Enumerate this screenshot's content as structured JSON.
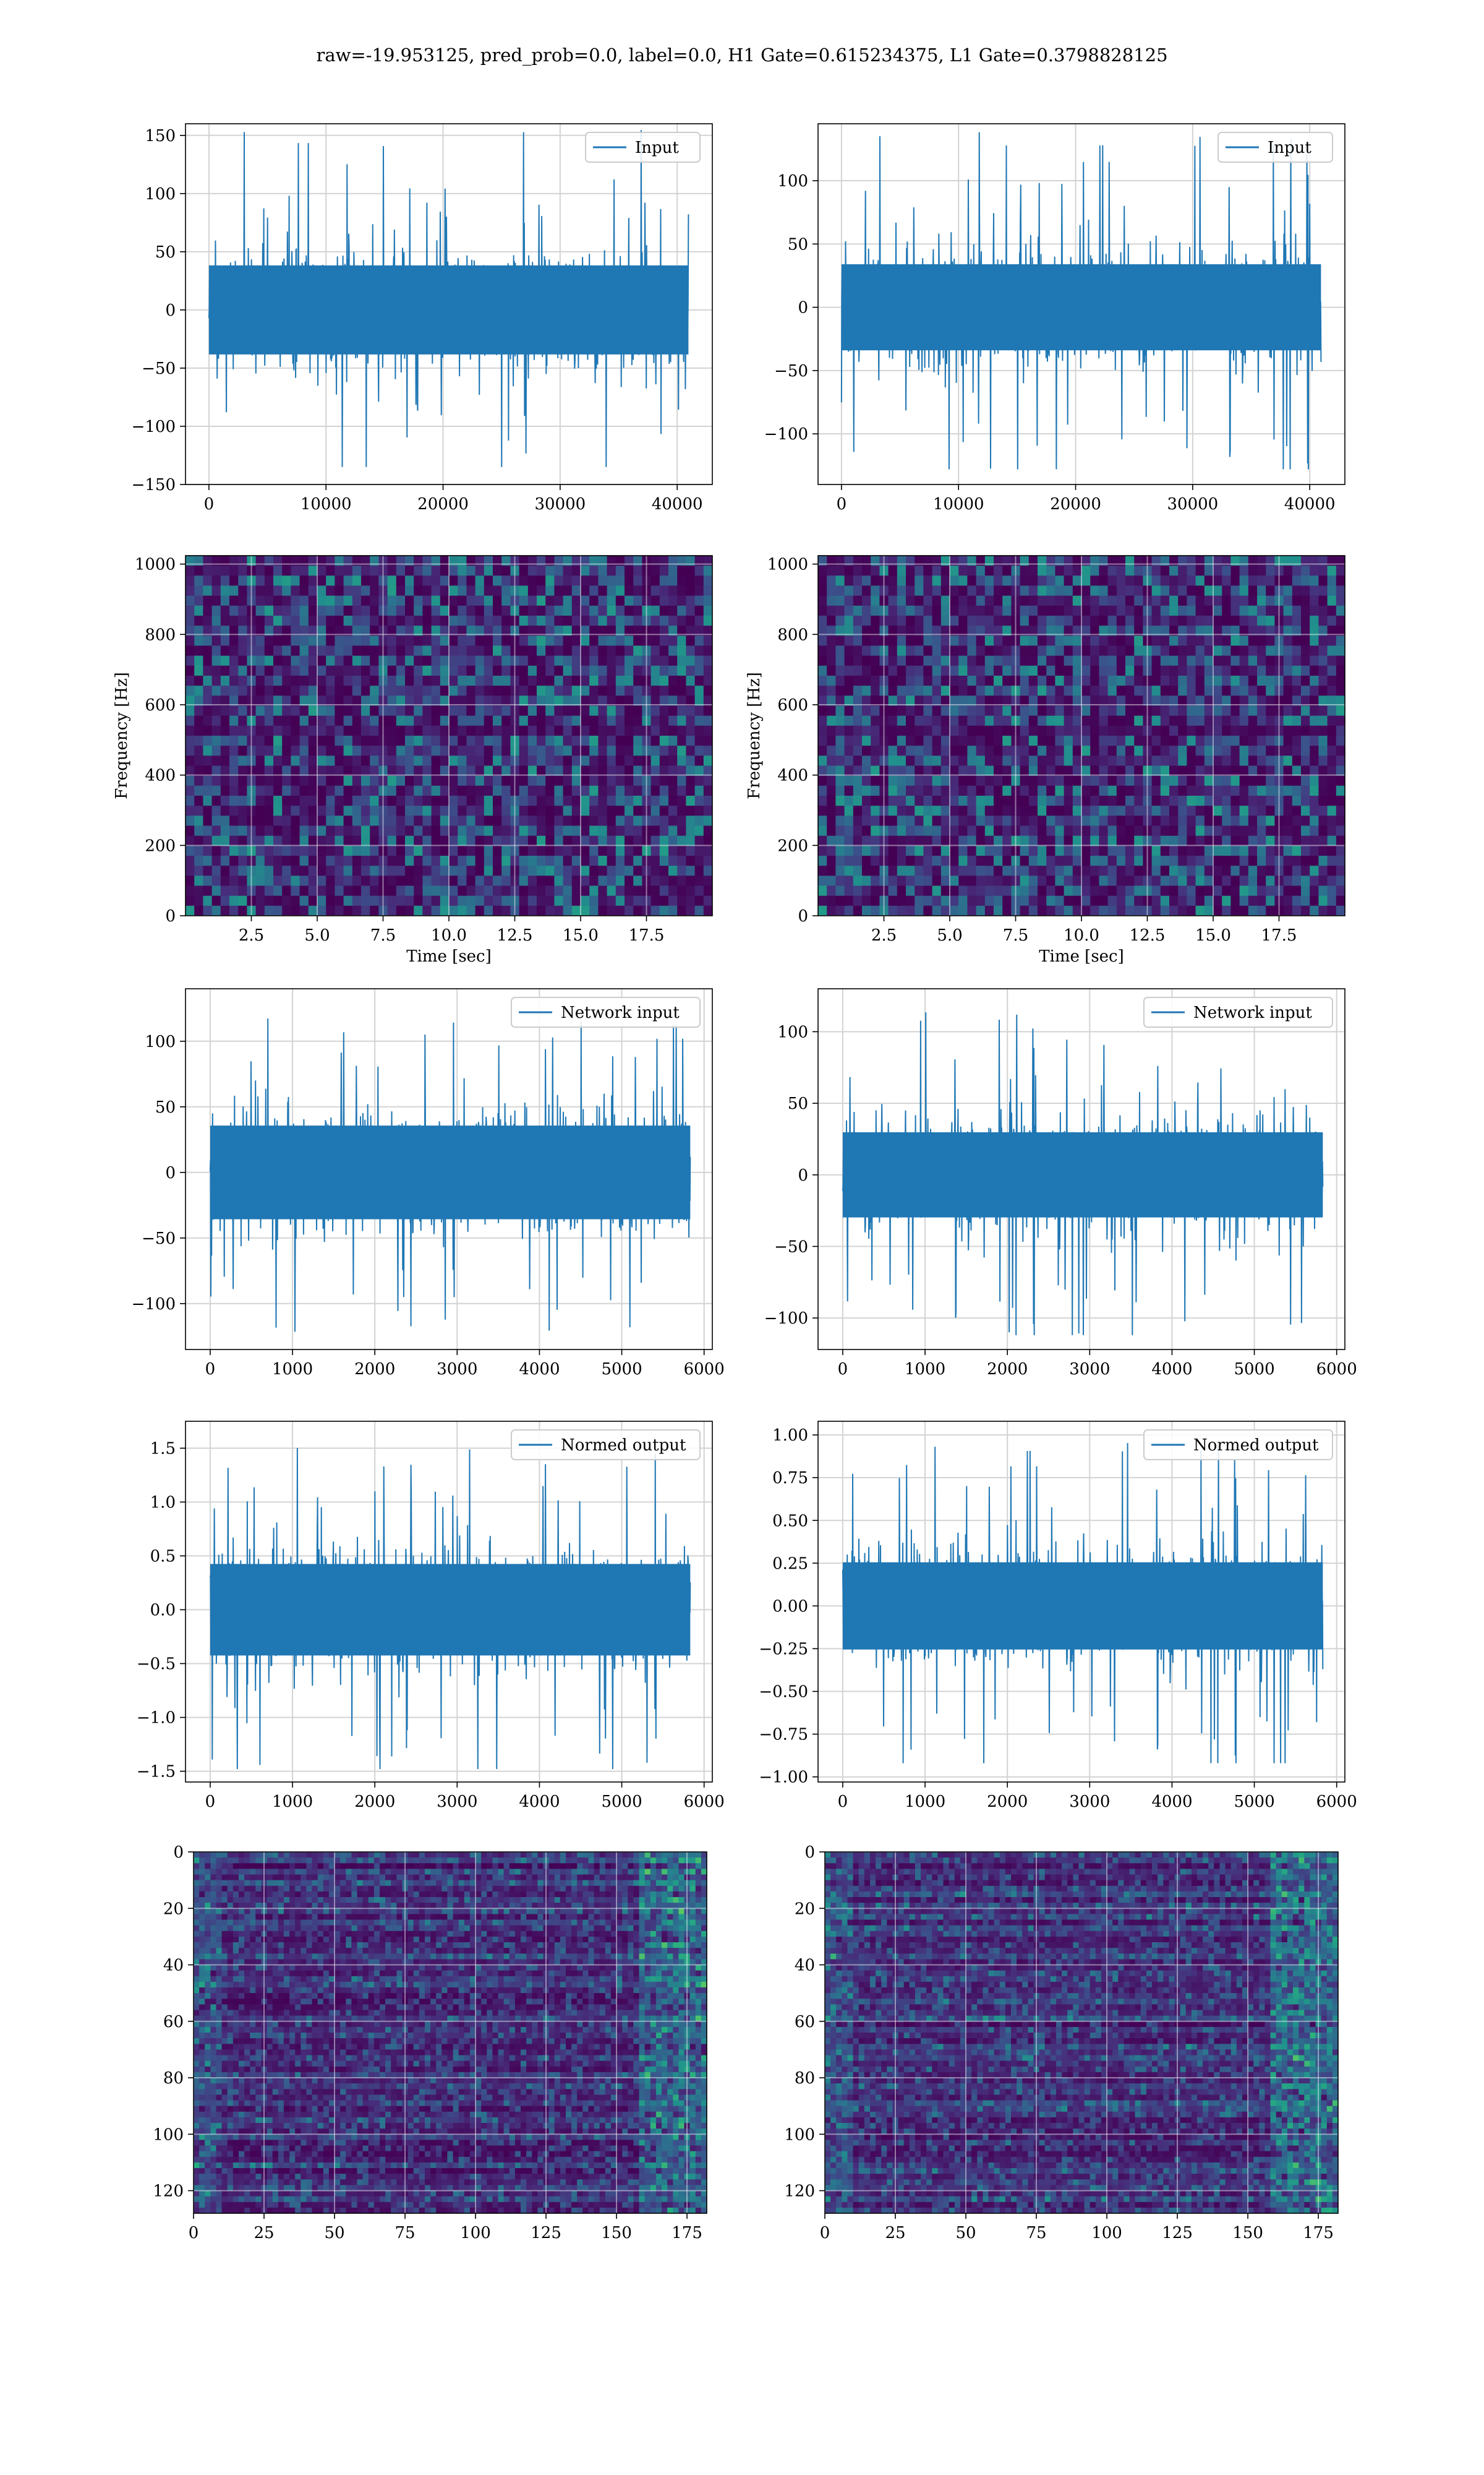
{
  "figure_title": "raw=-19.953125, pred_prob=0.0, label=0.0, H1 Gate=0.615234375, L1 Gate=0.3798828125",
  "colors": {
    "line": "#1f77b4",
    "grid": "#d3d3d3",
    "viridis": [
      "#440154",
      "#472c7a",
      "#3b518b",
      "#2c718e",
      "#21908d",
      "#27ad81",
      "#5cc863",
      "#aadc32",
      "#fde725"
    ]
  },
  "chart_data": [
    {
      "id": "h1-input",
      "type": "line",
      "legend": "Input",
      "xlim": [
        -2000,
        43000
      ],
      "ylim": [
        -150,
        160
      ],
      "xticks": [
        0,
        10000,
        20000,
        30000,
        40000
      ],
      "xtick_labels": [
        "0",
        "10000",
        "20000",
        "30000",
        "40000"
      ],
      "yticks": [
        -150,
        -100,
        -50,
        0,
        50,
        100,
        150
      ],
      "ytick_labels": [
        "−150",
        "−100",
        "−50",
        "0",
        "50",
        "100",
        "150"
      ],
      "series": [
        {
          "x_range": [
            0,
            40960
          ],
          "band": [
            -45,
            45
          ],
          "spike_max": 155,
          "spike_min": -135
        }
      ]
    },
    {
      "id": "l1-input",
      "type": "line",
      "legend": "Input",
      "xlim": [
        -2000,
        43000
      ],
      "ylim": [
        -140,
        145
      ],
      "xticks": [
        0,
        10000,
        20000,
        30000,
        40000
      ],
      "xtick_labels": [
        "0",
        "10000",
        "20000",
        "30000",
        "40000"
      ],
      "yticks": [
        -100,
        -50,
        0,
        50,
        100
      ],
      "ytick_labels": [
        "−100",
        "−50",
        "0",
        "50",
        "100"
      ],
      "series": [
        {
          "x_range": [
            0,
            40960
          ],
          "band": [
            -40,
            40
          ],
          "spike_max": 140,
          "spike_min": -128
        }
      ]
    },
    {
      "id": "h1-spectrogram",
      "type": "heatmap",
      "xlabel": "Time [sec]",
      "ylabel": "Frequency [Hz]",
      "xlim": [
        0,
        20
      ],
      "ylim": [
        0,
        1024
      ],
      "xticks": [
        2.5,
        5.0,
        7.5,
        10.0,
        12.5,
        15.0,
        17.5
      ],
      "xtick_labels": [
        "2.5",
        "5.0",
        "7.5",
        "10.0",
        "12.5",
        "15.0",
        "17.5"
      ],
      "yticks": [
        0,
        200,
        400,
        600,
        800,
        1000
      ],
      "ytick_labels": [
        "0",
        "200",
        "400",
        "600",
        "800",
        "1000"
      ]
    },
    {
      "id": "l1-spectrogram",
      "type": "heatmap",
      "xlabel": "Time [sec]",
      "ylabel": "Frequency [Hz]",
      "xlim": [
        0,
        20
      ],
      "ylim": [
        0,
        1024
      ],
      "xticks": [
        2.5,
        5.0,
        7.5,
        10.0,
        12.5,
        15.0,
        17.5
      ],
      "xtick_labels": [
        "2.5",
        "5.0",
        "7.5",
        "10.0",
        "12.5",
        "15.0",
        "17.5"
      ],
      "yticks": [
        0,
        200,
        400,
        600,
        800,
        1000
      ],
      "ytick_labels": [
        "0",
        "200",
        "400",
        "600",
        "800",
        "1000"
      ]
    },
    {
      "id": "h1-network-input",
      "type": "line",
      "legend": "Network input",
      "xlim": [
        -300,
        6100
      ],
      "ylim": [
        -135,
        140
      ],
      "xticks": [
        0,
        1000,
        2000,
        3000,
        4000,
        5000,
        6000
      ],
      "xtick_labels": [
        "0",
        "1000",
        "2000",
        "3000",
        "4000",
        "5000",
        "6000"
      ],
      "yticks": [
        -100,
        -50,
        0,
        50,
        100
      ],
      "ytick_labels": [
        "−100",
        "−50",
        "0",
        "50",
        "100"
      ],
      "series": [
        {
          "x_range": [
            0,
            5832
          ],
          "band": [
            -42,
            42
          ],
          "spike_max": 118,
          "spike_min": -122
        }
      ]
    },
    {
      "id": "l1-network-input",
      "type": "line",
      "legend": "Network input",
      "xlim": [
        -300,
        6100
      ],
      "ylim": [
        -122,
        130
      ],
      "xticks": [
        0,
        1000,
        2000,
        3000,
        4000,
        5000,
        6000
      ],
      "xtick_labels": [
        "0",
        "1000",
        "2000",
        "3000",
        "4000",
        "5000",
        "6000"
      ],
      "yticks": [
        -100,
        -50,
        0,
        50,
        100
      ],
      "ytick_labels": [
        "−100",
        "−50",
        "0",
        "50",
        "100"
      ],
      "series": [
        {
          "x_range": [
            0,
            5832
          ],
          "band": [
            -35,
            35
          ],
          "spike_max": 118,
          "spike_min": -112
        }
      ]
    },
    {
      "id": "h1-normed-output",
      "type": "line",
      "legend": "Normed output",
      "xlim": [
        -300,
        6100
      ],
      "ylim": [
        -1.6,
        1.75
      ],
      "xticks": [
        0,
        1000,
        2000,
        3000,
        4000,
        5000,
        6000
      ],
      "xtick_labels": [
        "0",
        "1000",
        "2000",
        "3000",
        "4000",
        "5000",
        "6000"
      ],
      "yticks": [
        -1.5,
        -1.0,
        -0.5,
        0.0,
        0.5,
        1.0,
        1.5
      ],
      "ytick_labels": [
        "−1.5",
        "−1.0",
        "−0.5",
        "0.0",
        "0.5",
        "1.0",
        "1.5"
      ],
      "series": [
        {
          "x_range": [
            0,
            5832
          ],
          "band": [
            -0.5,
            0.5
          ],
          "spike_max": 1.55,
          "spike_min": -1.48
        }
      ]
    },
    {
      "id": "l1-normed-output",
      "type": "line",
      "legend": "Normed output",
      "xlim": [
        -300,
        6100
      ],
      "ylim": [
        -1.03,
        1.08
      ],
      "xticks": [
        0,
        1000,
        2000,
        3000,
        4000,
        5000,
        6000
      ],
      "xtick_labels": [
        "0",
        "1000",
        "2000",
        "3000",
        "4000",
        "5000",
        "6000"
      ],
      "yticks": [
        -1.0,
        -0.75,
        -0.5,
        -0.25,
        0.0,
        0.25,
        0.5,
        0.75,
        1.0
      ],
      "ytick_labels": [
        "−1.00",
        "−0.75",
        "−0.50",
        "−0.25",
        "0.00",
        "0.25",
        "0.50",
        "0.75",
        "1.00"
      ],
      "series": [
        {
          "x_range": [
            0,
            5832
          ],
          "band": [
            -0.3,
            0.3
          ],
          "spike_max": 0.99,
          "spike_min": -0.92
        }
      ]
    },
    {
      "id": "h1-feature-map",
      "type": "heatmap",
      "xlim": [
        0,
        182
      ],
      "ylim": [
        128,
        0
      ],
      "xticks": [
        0,
        25,
        50,
        75,
        100,
        125,
        150,
        175
      ],
      "xtick_labels": [
        "0",
        "25",
        "50",
        "75",
        "100",
        "125",
        "150",
        "175"
      ],
      "yticks": [
        0,
        20,
        40,
        60,
        80,
        100,
        120
      ],
      "ytick_labels": [
        "0",
        "20",
        "40",
        "60",
        "80",
        "100",
        "120"
      ]
    },
    {
      "id": "l1-feature-map",
      "type": "heatmap",
      "xlim": [
        0,
        182
      ],
      "ylim": [
        128,
        0
      ],
      "xticks": [
        0,
        25,
        50,
        75,
        100,
        125,
        150,
        175
      ],
      "xtick_labels": [
        "0",
        "25",
        "50",
        "75",
        "100",
        "125",
        "150",
        "175"
      ],
      "yticks": [
        0,
        20,
        40,
        60,
        80,
        100,
        120
      ],
      "ytick_labels": [
        "0",
        "20",
        "40",
        "60",
        "80",
        "100",
        "120"
      ]
    }
  ]
}
